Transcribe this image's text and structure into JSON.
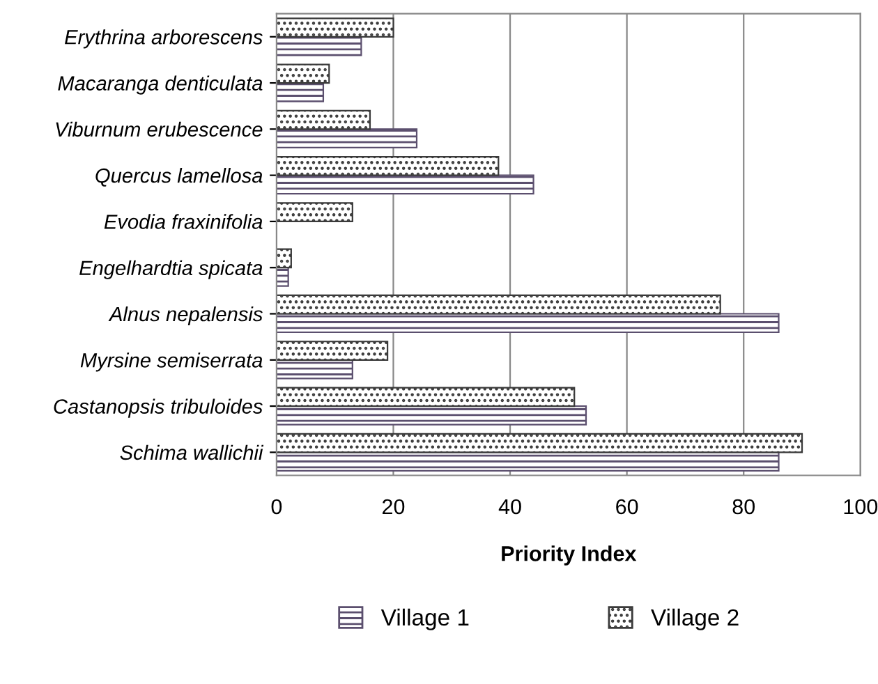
{
  "chart_data": {
    "type": "bar",
    "orientation": "horizontal",
    "xlabel": "Priority Index",
    "categories": [
      "Erythrina arborescens",
      "Macaranga denticulata",
      "Viburnum erubescence",
      "Quercus lamellosa",
      "Evodia fraxinifolia",
      "Engelhardtia spicata",
      "Alnus nepalensis",
      "Myrsine semiserrata",
      "Castanopsis tribuloides",
      "Schima wallichii"
    ],
    "series": [
      {
        "name": "Village 1",
        "color": "#5b4f6e",
        "values": [
          14.5,
          8,
          24,
          44,
          null,
          2,
          86,
          13,
          53,
          86
        ]
      },
      {
        "name": "Village 2",
        "color": "#3a3a3a",
        "values": [
          20,
          9,
          16,
          38,
          13,
          2.5,
          76,
          19,
          51,
          90
        ]
      }
    ],
    "xlim": [
      0,
      100
    ],
    "xticks": [
      0,
      20,
      40,
      60,
      80,
      100
    ],
    "grid": "x",
    "legend": "bottom"
  }
}
